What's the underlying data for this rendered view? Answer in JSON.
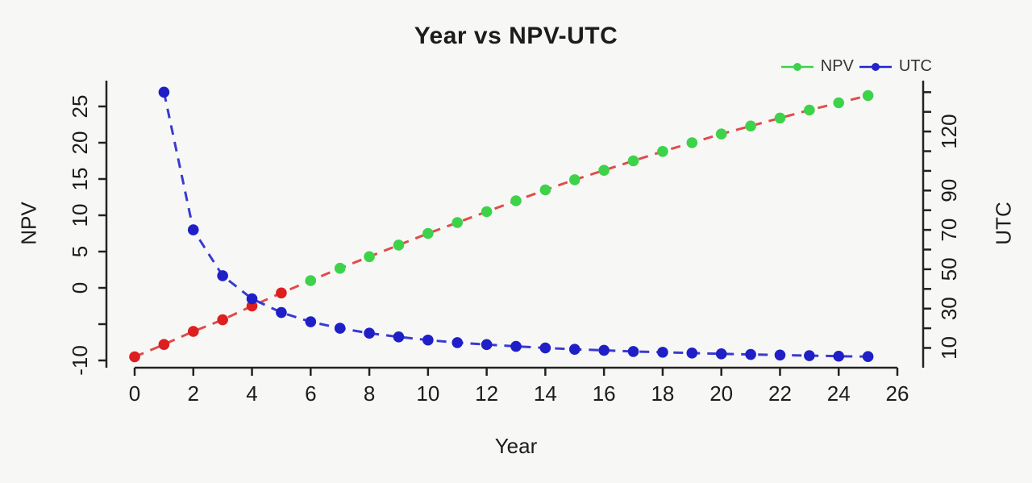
{
  "title": "Year vs NPV-UTC",
  "chart_data": {
    "type": "line",
    "title": "Year vs NPV-UTC",
    "xlabel": "Year",
    "ylabel": "NPV",
    "y2label": "UTC",
    "grid": false,
    "legend_position": "top-right",
    "x_axis": {
      "ticks": [
        0,
        2,
        4,
        6,
        8,
        10,
        12,
        14,
        16,
        18,
        20,
        22,
        24,
        26
      ],
      "range": [
        0,
        26
      ]
    },
    "left_axis": {
      "label": "NPV",
      "ticks": [
        -10,
        -5,
        0,
        5,
        10,
        15,
        20,
        25
      ],
      "labeled_ticks": [
        -10,
        0,
        5,
        10,
        15,
        20,
        25
      ],
      "range": [
        -10.8,
        28.6
      ]
    },
    "right_axis": {
      "label": "UTC",
      "ticks": [
        10,
        20,
        30,
        40,
        50,
        60,
        70,
        80,
        90,
        100,
        110,
        120,
        130,
        140
      ],
      "labeled_ticks": [
        10,
        30,
        50,
        70,
        90,
        120
      ],
      "range": [
        0,
        150
      ]
    },
    "legend": [
      {
        "label": "NPV",
        "color": "#3ed24b"
      },
      {
        "label": "UTC",
        "color": "#2424cb"
      }
    ],
    "series": [
      {
        "name": "NPV",
        "axis": "left",
        "line_color": "#e14b4b",
        "line_style": "dashed",
        "point_color_negative": "#dd1f1f",
        "point_color_positive": "#3ed24b",
        "x": [
          0,
          1,
          2,
          3,
          4,
          5,
          6,
          7,
          8,
          9,
          10,
          11,
          12,
          13,
          14,
          15,
          16,
          17,
          18,
          19,
          20,
          21,
          22,
          23,
          24,
          25
        ],
        "values": [
          -9.5,
          -7.8,
          -6.0,
          -4.4,
          -2.5,
          -0.7,
          1.0,
          2.7,
          4.3,
          5.9,
          7.5,
          9.0,
          10.5,
          12.0,
          13.5,
          14.9,
          16.2,
          17.5,
          18.8,
          20.0,
          21.2,
          22.3,
          23.4,
          24.5,
          25.5,
          26.5
        ]
      },
      {
        "name": "UTC",
        "axis": "right",
        "line_color": "#3a3ad1",
        "line_style": "dashed",
        "point_color": "#1f1fc8",
        "x": [
          1,
          2,
          3,
          4,
          5,
          6,
          7,
          8,
          9,
          10,
          11,
          12,
          13,
          14,
          15,
          16,
          17,
          18,
          19,
          20,
          21,
          22,
          23,
          24,
          25
        ],
        "values": [
          140,
          70,
          46.7,
          35,
          28,
          23.3,
          20,
          17.5,
          15.6,
          14,
          12.7,
          11.7,
          10.8,
          10,
          9.3,
          8.8,
          8.2,
          7.8,
          7.4,
          7,
          6.7,
          6.4,
          6.1,
          5.8,
          5.6
        ]
      }
    ],
    "axis_color": "#222222",
    "background_color": "#f7f8f6"
  }
}
